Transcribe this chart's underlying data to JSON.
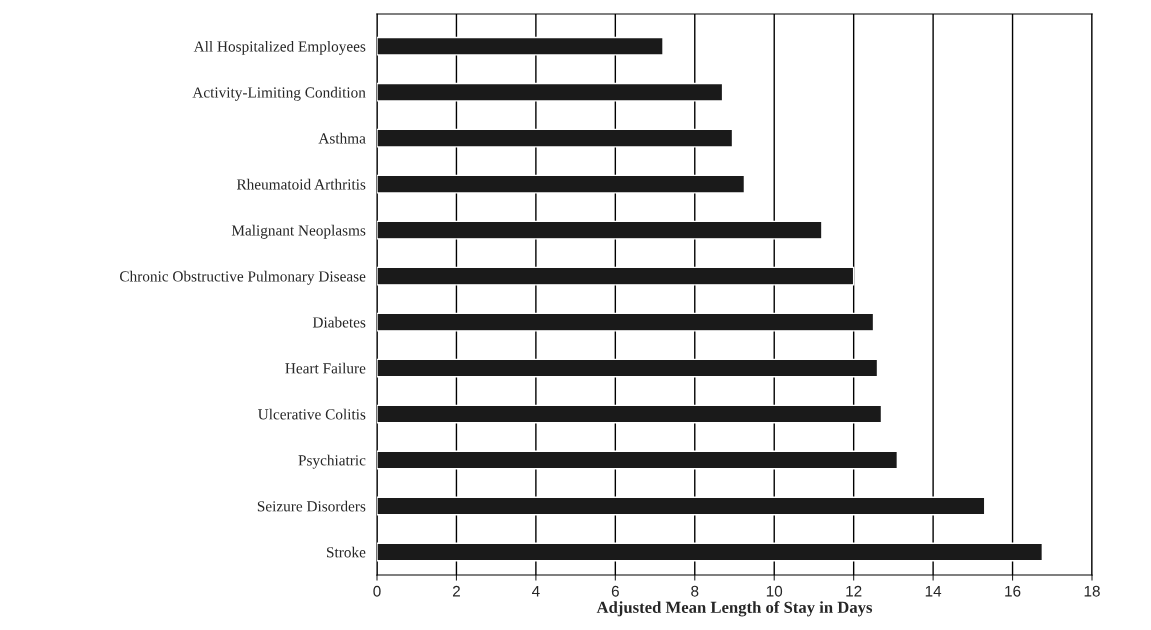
{
  "chart_data": {
    "type": "bar",
    "orientation": "horizontal",
    "xlabel": "Adjusted Mean Length of Stay in Days",
    "categories": [
      "All Hospitalized Employees",
      "Activity-Limiting Condition",
      "Asthma",
      "Rheumatoid Arthritis",
      "Malignant Neoplasms",
      "Chronic Obstructive Pulmonary Disease",
      "Diabetes",
      "Heart Failure",
      "Ulcerative Colitis",
      "Psychiatric",
      "Seizure Disorders",
      "Stroke"
    ],
    "values": [
      7.2,
      8.7,
      8.95,
      9.25,
      11.2,
      12.0,
      12.5,
      12.6,
      12.7,
      13.1,
      15.3,
      16.75
    ],
    "color": "#1a1a1a",
    "xlim": [
      0,
      18
    ],
    "xticks": [
      0,
      2,
      4,
      6,
      8,
      10,
      12,
      14,
      16,
      18
    ],
    "grid": "x",
    "legend": false
  }
}
